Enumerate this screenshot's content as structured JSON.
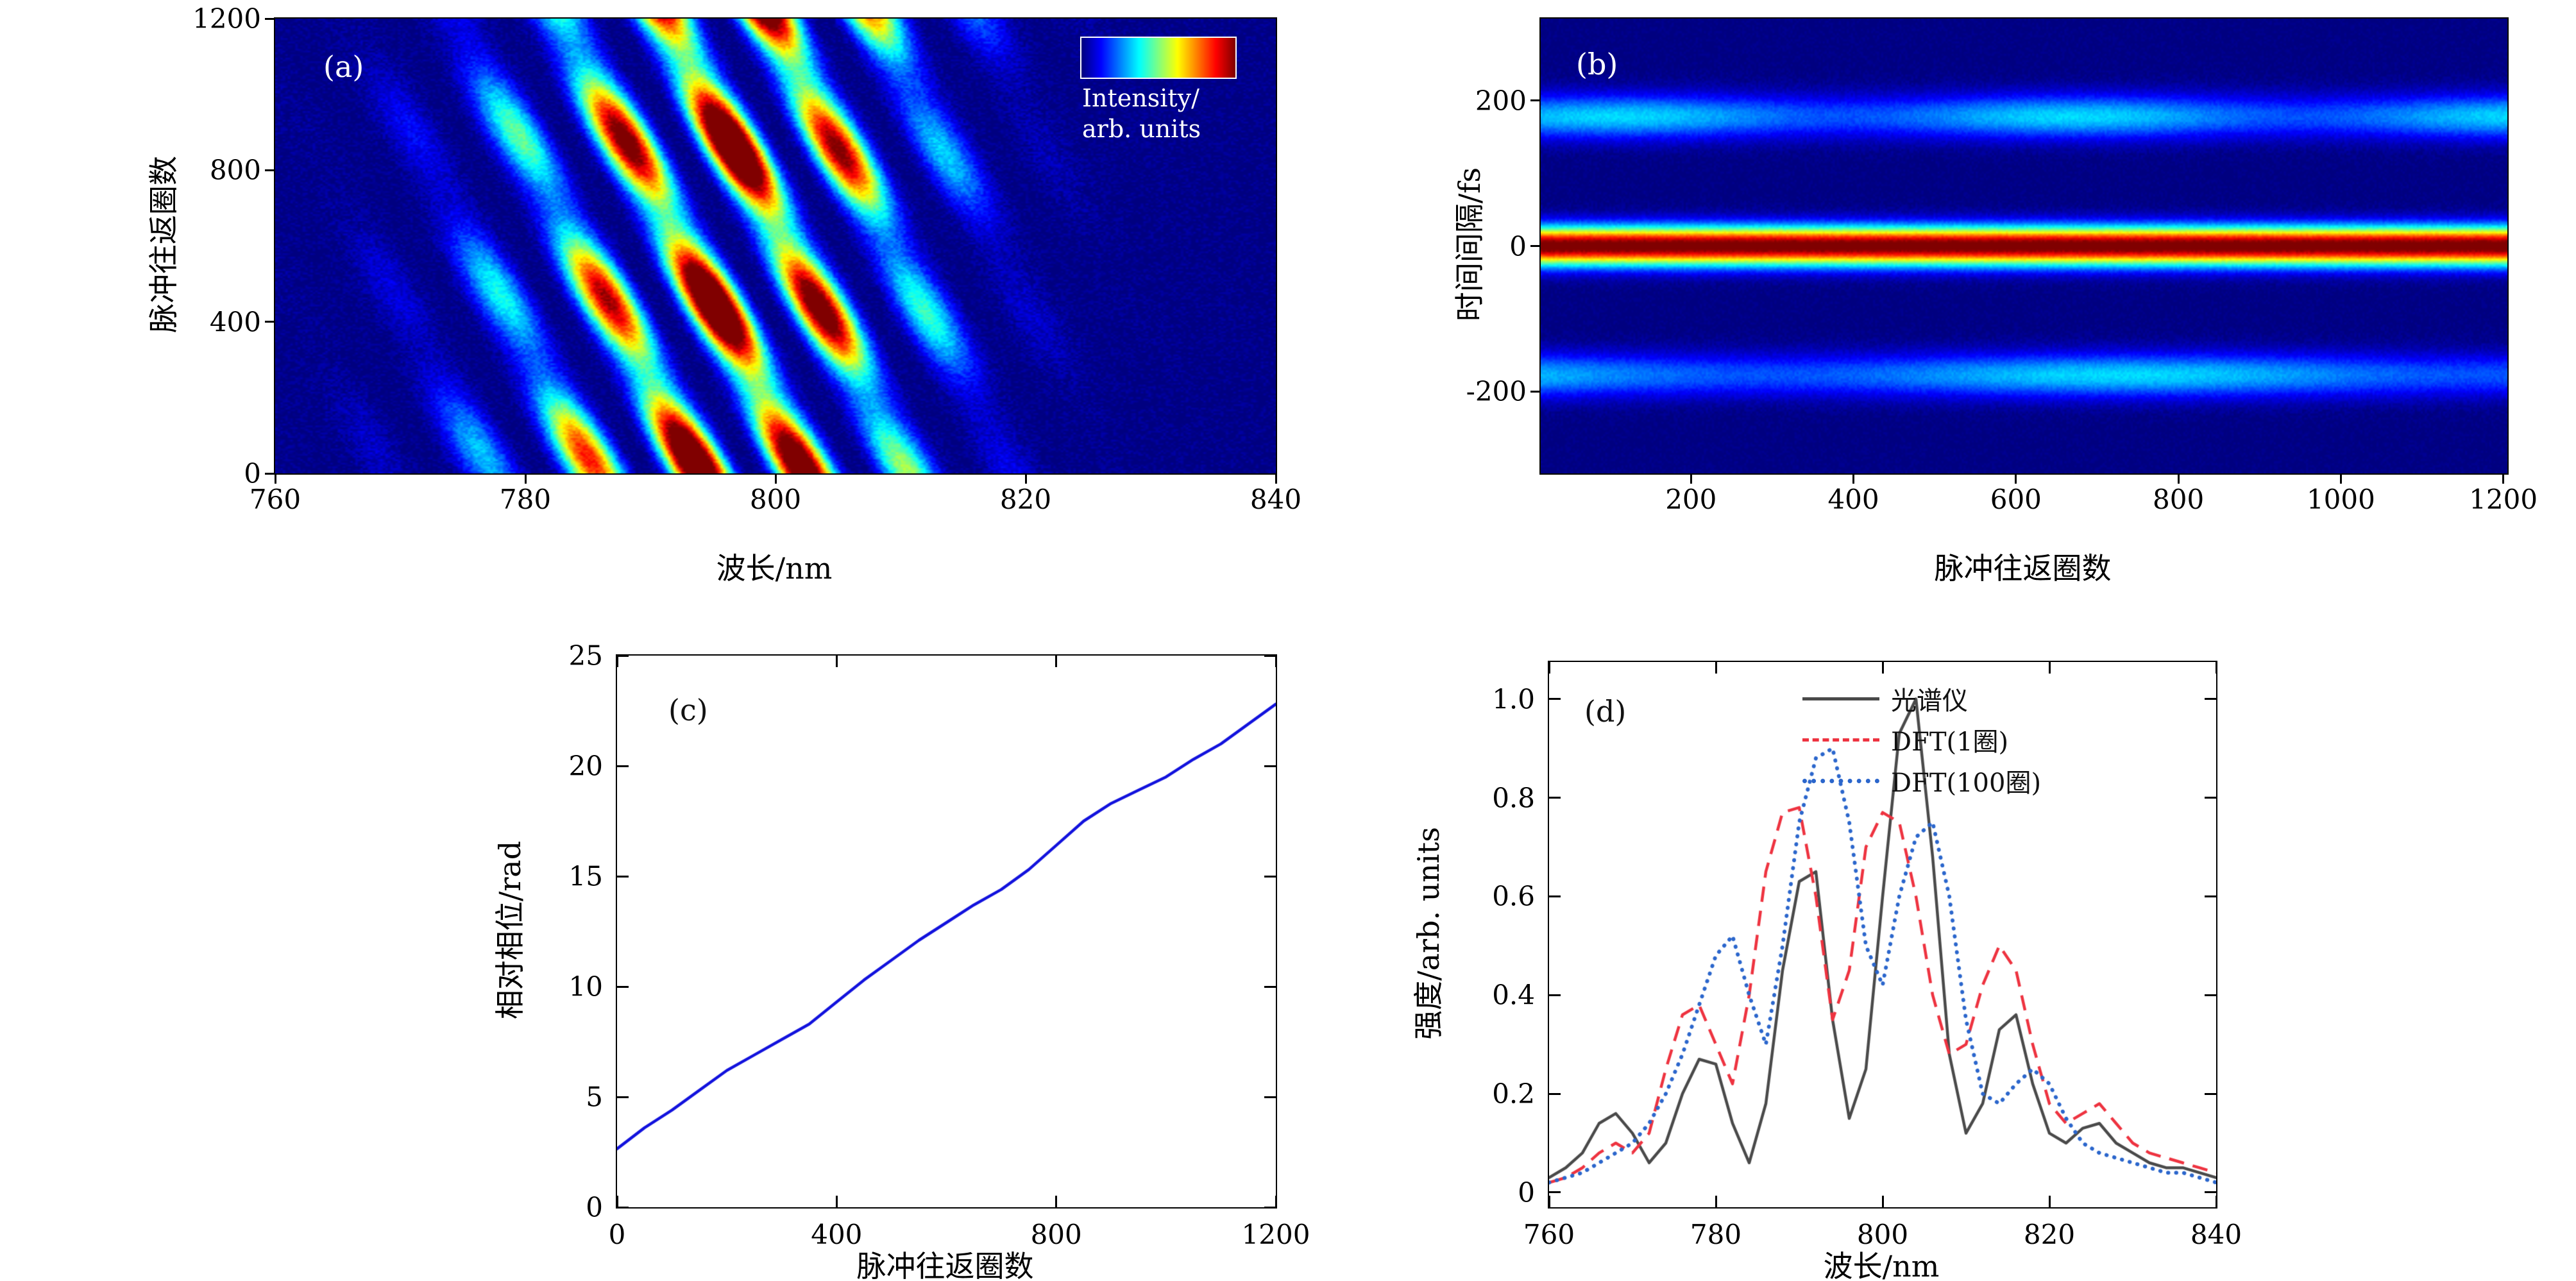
{
  "chart_data": [
    {
      "id": "a",
      "type": "heatmap",
      "tag": "(a)",
      "xlabel": "波长/nm",
      "ylabel": "脉冲往返圈数",
      "xlim": [
        760,
        840
      ],
      "ylim": [
        0,
        1200
      ],
      "xticks": [
        760,
        780,
        800,
        820,
        840
      ],
      "xtick_labels": [
        "760",
        "780",
        "800",
        "820",
        "840"
      ],
      "yticks": [
        0,
        400,
        800,
        1200
      ],
      "ytick_labels": [
        "0",
        "400",
        "800",
        "1200"
      ],
      "colormap": "jet",
      "colorbar_label": [
        "Intensity/",
        "arb. units"
      ],
      "description": "Single-shot spectra versus round-trip number: tilted spectral interference fringes drifting toward shorter wavelength as round trips increase, envelope centered near 797 nm",
      "pattern": {
        "kind": "tilted-fringes",
        "envelope_center_nm": 797,
        "envelope_sigma_left_nm": 17,
        "envelope_sigma_right_nm": 14,
        "fringe_period_nm": 8.5,
        "fringe_drift_nm_per_span": 20,
        "blob_period_rt": 420,
        "noise": 0.08
      }
    },
    {
      "id": "b",
      "type": "heatmap",
      "tag": "(b)",
      "xlabel": "脉冲往返圈数",
      "ylabel": "时间间隔/fs",
      "xlim": [
        15,
        1205
      ],
      "ylim": [
        -313,
        313
      ],
      "xticks": [
        200,
        400,
        600,
        800,
        1000,
        1200
      ],
      "xtick_labels": [
        "200",
        "400",
        "600",
        "800",
        "1000",
        "1200"
      ],
      "yticks": [
        -200,
        0,
        200
      ],
      "ytick_labels": [
        "-200",
        "0",
        "200"
      ],
      "colormap": "jet",
      "description": "Field autocorrelation versus round-trip number: strong stationary band at 0 fs delay and weak side bands near ±178 fs",
      "pattern": {
        "kind": "horizontal-bands",
        "center_fs": 0,
        "center_sigma_fs": 26,
        "center_amp": 1.05,
        "side_offset_fs": 178,
        "side_sigma_fs": 30,
        "side_amp": 0.34,
        "noise": 0.04
      }
    },
    {
      "id": "c",
      "type": "line",
      "tag": "(c)",
      "xlabel": "脉冲往返圈数",
      "ylabel": "相对相位/rad",
      "xlim": [
        0,
        1200
      ],
      "ylim": [
        0,
        25
      ],
      "xticks": [
        0,
        400,
        800,
        1200
      ],
      "xtick_labels": [
        "0",
        "400",
        "800",
        "1200"
      ],
      "yticks": [
        0,
        5,
        10,
        15,
        20,
        25
      ],
      "ytick_labels": [
        "0",
        "5",
        "10",
        "15",
        "20",
        "25"
      ],
      "series": [
        {
          "name": "相对相位",
          "color": "#1212dd",
          "style": "solid",
          "x": [
            0,
            50,
            100,
            150,
            200,
            250,
            300,
            350,
            400,
            450,
            500,
            550,
            600,
            650,
            700,
            750,
            800,
            850,
            900,
            950,
            1000,
            1050,
            1100,
            1150,
            1200
          ],
          "y": [
            2.65,
            3.6,
            4.4,
            5.3,
            6.2,
            6.9,
            7.6,
            8.3,
            9.3,
            10.3,
            11.2,
            12.1,
            12.9,
            13.7,
            14.4,
            15.3,
            16.4,
            17.5,
            18.3,
            18.9,
            19.5,
            20.3,
            21.0,
            21.9,
            22.8
          ]
        }
      ]
    },
    {
      "id": "d",
      "type": "line",
      "tag": "(d)",
      "xlabel": "波长/nm",
      "ylabel": "强度/arb. units",
      "xlim": [
        760,
        840
      ],
      "ylim": [
        -0.03,
        1.075
      ],
      "xticks": [
        760,
        780,
        800,
        820,
        840
      ],
      "xtick_labels": [
        "760",
        "780",
        "800",
        "820",
        "840"
      ],
      "yticks": [
        0,
        0.2,
        0.4,
        0.6,
        0.8,
        1.0
      ],
      "ytick_labels": [
        "0",
        "0.2",
        "0.4",
        "0.6",
        "0.8",
        "1.0"
      ],
      "legend_position": "top-right",
      "x": [
        760,
        762,
        764,
        766,
        768,
        770,
        772,
        774,
        776,
        778,
        780,
        782,
        784,
        786,
        788,
        790,
        792,
        794,
        796,
        798,
        800,
        802,
        804,
        806,
        808,
        810,
        812,
        814,
        816,
        818,
        820,
        822,
        824,
        826,
        828,
        830,
        832,
        834,
        836,
        838,
        840
      ],
      "series": [
        {
          "name": "光谱仪",
          "color": "#4a4a4a",
          "style": "solid",
          "y": [
            0.03,
            0.05,
            0.08,
            0.14,
            0.16,
            0.12,
            0.06,
            0.1,
            0.2,
            0.27,
            0.26,
            0.14,
            0.06,
            0.18,
            0.45,
            0.63,
            0.65,
            0.35,
            0.15,
            0.25,
            0.6,
            0.93,
            1.0,
            0.68,
            0.28,
            0.12,
            0.18,
            0.33,
            0.36,
            0.22,
            0.12,
            0.1,
            0.13,
            0.14,
            0.1,
            0.08,
            0.06,
            0.05,
            0.05,
            0.04,
            0.03
          ]
        },
        {
          "name": "DFT(1圈)",
          "color": "#ee3340",
          "style": "dashed",
          "y": [
            0.02,
            0.03,
            0.05,
            0.08,
            0.1,
            0.08,
            0.12,
            0.25,
            0.36,
            0.38,
            0.3,
            0.22,
            0.4,
            0.65,
            0.77,
            0.78,
            0.6,
            0.35,
            0.45,
            0.7,
            0.77,
            0.75,
            0.6,
            0.4,
            0.28,
            0.3,
            0.42,
            0.5,
            0.45,
            0.3,
            0.18,
            0.14,
            0.16,
            0.18,
            0.14,
            0.1,
            0.08,
            0.07,
            0.06,
            0.05,
            0.04
          ]
        },
        {
          "name": "DFT(100圈)",
          "color": "#2b66cc",
          "style": "dotted",
          "y": [
            0.02,
            0.03,
            0.04,
            0.06,
            0.08,
            0.1,
            0.14,
            0.2,
            0.28,
            0.38,
            0.48,
            0.52,
            0.4,
            0.3,
            0.5,
            0.75,
            0.88,
            0.9,
            0.75,
            0.5,
            0.42,
            0.6,
            0.72,
            0.75,
            0.6,
            0.35,
            0.2,
            0.18,
            0.22,
            0.25,
            0.22,
            0.15,
            0.1,
            0.08,
            0.07,
            0.06,
            0.05,
            0.04,
            0.04,
            0.03,
            0.02
          ]
        }
      ]
    }
  ]
}
